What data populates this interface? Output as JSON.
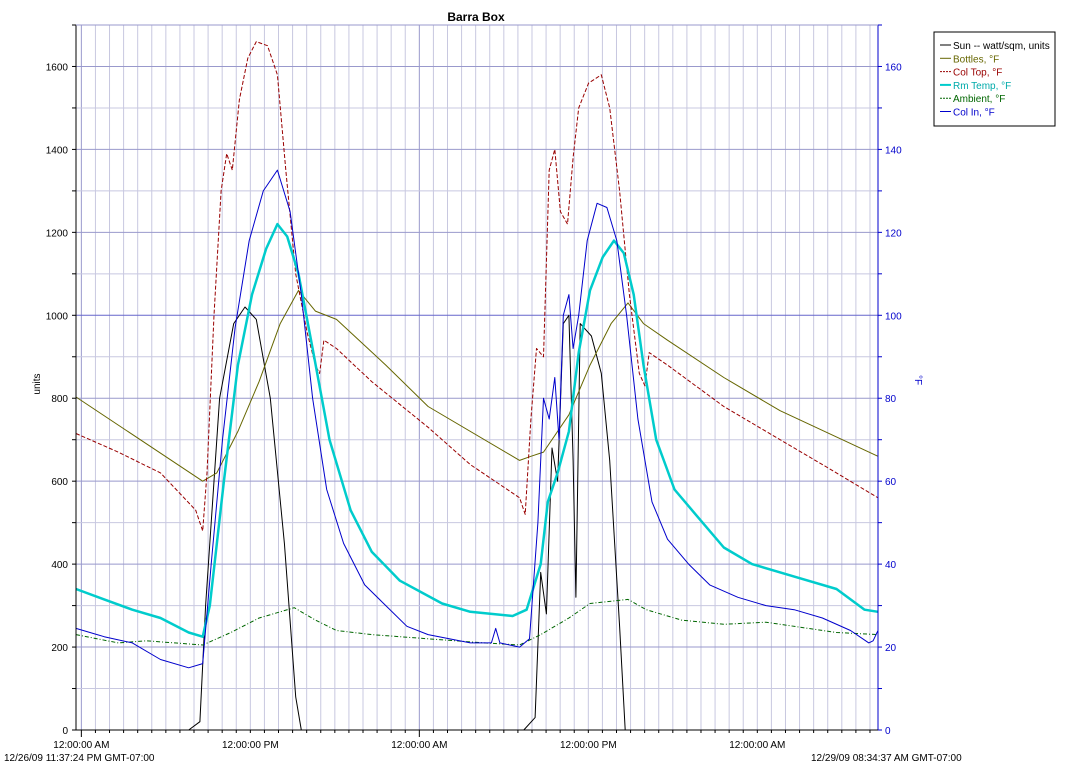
{
  "chart_data": {
    "type": "line",
    "title": "Barra Box",
    "ylabel_left": "units",
    "ylabel_right": "°F",
    "yleft_lim": [
      0,
      1700
    ],
    "yright_lim": [
      0,
      170
    ],
    "yleft_ticks": [
      0,
      200,
      400,
      600,
      800,
      1000,
      1200,
      1400,
      1600
    ],
    "yright_ticks": [
      0,
      20,
      40,
      60,
      80,
      100,
      120,
      140,
      160
    ],
    "x_unit": "hours since 12/26/09 11:37:24 PM",
    "x_lim": [
      0,
      56.95
    ],
    "x_tick_labels": [
      {
        "x": 0.38,
        "label": "12:00:00 AM"
      },
      {
        "x": 12.38,
        "label": "12:00:00 PM"
      },
      {
        "x": 24.38,
        "label": "12:00:00 AM"
      },
      {
        "x": 36.38,
        "label": "12:00:00 PM"
      },
      {
        "x": 48.38,
        "label": "12:00:00 AM"
      }
    ],
    "start_label": "12/26/09 11:37:24 PM GMT-07:00",
    "end_label": "12/29/09 08:34:37 AM GMT-07:00",
    "grid": true,
    "legend_position": "top-right, outside",
    "series": [
      {
        "name": "Sun -- watt/sqm, units",
        "axis": "left",
        "color": "#000000",
        "style": "solid",
        "width": 1,
        "points": [
          [
            0,
            0
          ],
          [
            8.0,
            0
          ],
          [
            8.8,
            20
          ],
          [
            9.2,
            300
          ],
          [
            10.2,
            800
          ],
          [
            11.2,
            980
          ],
          [
            12.0,
            1020
          ],
          [
            12.8,
            990
          ],
          [
            13.8,
            800
          ],
          [
            14.8,
            450
          ],
          [
            15.6,
            80
          ],
          [
            16.0,
            0
          ],
          [
            31.8,
            0
          ],
          [
            32.6,
            30
          ],
          [
            33.0,
            380
          ],
          [
            33.4,
            280
          ],
          [
            33.8,
            680
          ],
          [
            34.2,
            600
          ],
          [
            34.6,
            980
          ],
          [
            35.0,
            1000
          ],
          [
            35.3,
            650
          ],
          [
            35.5,
            320
          ],
          [
            35.8,
            980
          ],
          [
            36.6,
            950
          ],
          [
            37.3,
            860
          ],
          [
            37.9,
            650
          ],
          [
            38.6,
            250
          ],
          [
            39.0,
            0
          ],
          [
            56.2,
            0
          ],
          [
            56.95,
            0
          ]
        ]
      },
      {
        "name": "Bottles, °F",
        "axis": "right",
        "color": "#666600",
        "style": "solid",
        "width": 1,
        "points": [
          [
            0,
            80.3
          ],
          [
            9.0,
            60
          ],
          [
            10.0,
            62
          ],
          [
            11.5,
            72
          ],
          [
            13.0,
            84
          ],
          [
            14.5,
            98
          ],
          [
            15.8,
            106
          ],
          [
            17.0,
            101
          ],
          [
            18.5,
            99
          ],
          [
            22.0,
            88
          ],
          [
            25.0,
            78
          ],
          [
            31.5,
            65
          ],
          [
            32.3,
            66
          ],
          [
            33.2,
            67
          ],
          [
            35.0,
            76
          ],
          [
            36.5,
            88
          ],
          [
            38.0,
            98
          ],
          [
            39.2,
            103
          ],
          [
            40.3,
            98
          ],
          [
            42.0,
            94
          ],
          [
            46.0,
            85
          ],
          [
            50.0,
            77
          ],
          [
            56.95,
            66
          ]
        ]
      },
      {
        "name": "Col Top, °F",
        "axis": "right",
        "color": "#990000",
        "style": "dashed",
        "width": 1,
        "points": [
          [
            0,
            71.5
          ],
          [
            3.0,
            67
          ],
          [
            6.0,
            62
          ],
          [
            8.5,
            53
          ],
          [
            9.0,
            48
          ],
          [
            9.3,
            62
          ],
          [
            9.8,
            100
          ],
          [
            10.3,
            130
          ],
          [
            10.7,
            139
          ],
          [
            11.1,
            135
          ],
          [
            11.6,
            152
          ],
          [
            12.2,
            162
          ],
          [
            12.8,
            166
          ],
          [
            13.6,
            165
          ],
          [
            14.3,
            158
          ],
          [
            14.9,
            135
          ],
          [
            15.6,
            110
          ],
          [
            16.4,
            96
          ],
          [
            17.0,
            88
          ],
          [
            17.3,
            86
          ],
          [
            17.6,
            94
          ],
          [
            18.5,
            92
          ],
          [
            21.0,
            84
          ],
          [
            25.0,
            73
          ],
          [
            28.0,
            64
          ],
          [
            31.5,
            56
          ],
          [
            31.9,
            52
          ],
          [
            32.3,
            75
          ],
          [
            32.7,
            92
          ],
          [
            33.2,
            90
          ],
          [
            33.6,
            135
          ],
          [
            34.0,
            140
          ],
          [
            34.4,
            125
          ],
          [
            34.9,
            122
          ],
          [
            35.3,
            138
          ],
          [
            35.7,
            150
          ],
          [
            36.4,
            156
          ],
          [
            37.3,
            158
          ],
          [
            37.9,
            150
          ],
          [
            38.6,
            130
          ],
          [
            39.3,
            105
          ],
          [
            40.0,
            86
          ],
          [
            40.4,
            83
          ],
          [
            40.7,
            91
          ],
          [
            42.0,
            88
          ],
          [
            46.0,
            78
          ],
          [
            50.0,
            70
          ],
          [
            53.5,
            63
          ],
          [
            56.95,
            56
          ]
        ]
      },
      {
        "name": "Rm Temp, °F",
        "axis": "right",
        "color": "#00cccc",
        "style": "solid",
        "width": 2.5,
        "points": [
          [
            0,
            34
          ],
          [
            2.0,
            31.5
          ],
          [
            4.0,
            29
          ],
          [
            6.0,
            27
          ],
          [
            8.0,
            23.5
          ],
          [
            9.0,
            22.5
          ],
          [
            9.5,
            30
          ],
          [
            10.5,
            60
          ],
          [
            11.5,
            88
          ],
          [
            12.5,
            105
          ],
          [
            13.5,
            116
          ],
          [
            14.3,
            122
          ],
          [
            15.0,
            119
          ],
          [
            15.8,
            110
          ],
          [
            16.8,
            92
          ],
          [
            18.0,
            70
          ],
          [
            19.5,
            53
          ],
          [
            21.0,
            43
          ],
          [
            23.0,
            36
          ],
          [
            26.0,
            30.5
          ],
          [
            28.0,
            28.5
          ],
          [
            31.0,
            27.5
          ],
          [
            32.0,
            29
          ],
          [
            33.0,
            40
          ],
          [
            33.5,
            55
          ],
          [
            34.2,
            62
          ],
          [
            35.0,
            72
          ],
          [
            35.7,
            91
          ],
          [
            36.5,
            106
          ],
          [
            37.4,
            114
          ],
          [
            38.2,
            118
          ],
          [
            38.9,
            115
          ],
          [
            39.6,
            105
          ],
          [
            40.3,
            88
          ],
          [
            41.2,
            70
          ],
          [
            42.5,
            58
          ],
          [
            44.0,
            52
          ],
          [
            46.0,
            44
          ],
          [
            48.0,
            40
          ],
          [
            51.0,
            37
          ],
          [
            54.0,
            34
          ],
          [
            56.0,
            29
          ],
          [
            56.95,
            28.5
          ]
        ]
      },
      {
        "name": "Ambient, °F",
        "axis": "right",
        "color": "#006600",
        "style": "dashdot",
        "width": 1,
        "points": [
          [
            0,
            23
          ],
          [
            3.0,
            21
          ],
          [
            5.0,
            21.5
          ],
          [
            7.0,
            21
          ],
          [
            9.0,
            20.5
          ],
          [
            11.0,
            23.5
          ],
          [
            13.0,
            27
          ],
          [
            15.5,
            29.5
          ],
          [
            17.0,
            26.5
          ],
          [
            18.5,
            24
          ],
          [
            21.0,
            23
          ],
          [
            25.0,
            22
          ],
          [
            29.0,
            21
          ],
          [
            31.5,
            20.5
          ],
          [
            33.0,
            23
          ],
          [
            35.0,
            27
          ],
          [
            36.5,
            30.5
          ],
          [
            39.2,
            31.5
          ],
          [
            40.5,
            29
          ],
          [
            43.0,
            26.5
          ],
          [
            46.0,
            25.5
          ],
          [
            49.0,
            26
          ],
          [
            52.0,
            24.5
          ],
          [
            54.0,
            23.5
          ],
          [
            56.95,
            23
          ]
        ]
      },
      {
        "name": "Col In, °F",
        "axis": "right",
        "color": "#0000cc",
        "style": "solid",
        "width": 1,
        "points": [
          [
            0,
            24.5
          ],
          [
            2.0,
            22.5
          ],
          [
            4.0,
            21
          ],
          [
            6.0,
            17
          ],
          [
            8.0,
            15
          ],
          [
            9.0,
            16
          ],
          [
            9.6,
            40
          ],
          [
            10.4,
            70
          ],
          [
            11.3,
            97
          ],
          [
            12.3,
            118
          ],
          [
            13.3,
            130
          ],
          [
            14.3,
            135
          ],
          [
            15.2,
            125
          ],
          [
            16.0,
            105
          ],
          [
            16.8,
            80
          ],
          [
            17.8,
            58
          ],
          [
            19.0,
            45
          ],
          [
            20.5,
            35
          ],
          [
            22.0,
            30
          ],
          [
            23.5,
            25
          ],
          [
            25.0,
            23
          ],
          [
            28.0,
            21
          ],
          [
            29.5,
            21
          ],
          [
            29.8,
            24.5
          ],
          [
            30.1,
            21
          ],
          [
            31.5,
            20
          ],
          [
            32.2,
            22
          ],
          [
            32.8,
            50
          ],
          [
            33.2,
            80
          ],
          [
            33.6,
            75
          ],
          [
            34.0,
            85
          ],
          [
            34.3,
            70
          ],
          [
            34.6,
            100
          ],
          [
            35.0,
            105
          ],
          [
            35.3,
            92
          ],
          [
            35.7,
            100
          ],
          [
            36.3,
            118
          ],
          [
            37.0,
            127
          ],
          [
            37.7,
            126
          ],
          [
            38.4,
            118
          ],
          [
            39.1,
            100
          ],
          [
            39.9,
            75
          ],
          [
            40.9,
            55
          ],
          [
            42.0,
            46
          ],
          [
            43.5,
            40
          ],
          [
            45.0,
            35
          ],
          [
            47.0,
            32
          ],
          [
            49.0,
            30
          ],
          [
            51.0,
            29
          ],
          [
            53.0,
            27
          ],
          [
            55.0,
            24
          ],
          [
            56.3,
            21
          ],
          [
            56.6,
            21.5
          ],
          [
            56.95,
            24
          ]
        ]
      }
    ]
  }
}
